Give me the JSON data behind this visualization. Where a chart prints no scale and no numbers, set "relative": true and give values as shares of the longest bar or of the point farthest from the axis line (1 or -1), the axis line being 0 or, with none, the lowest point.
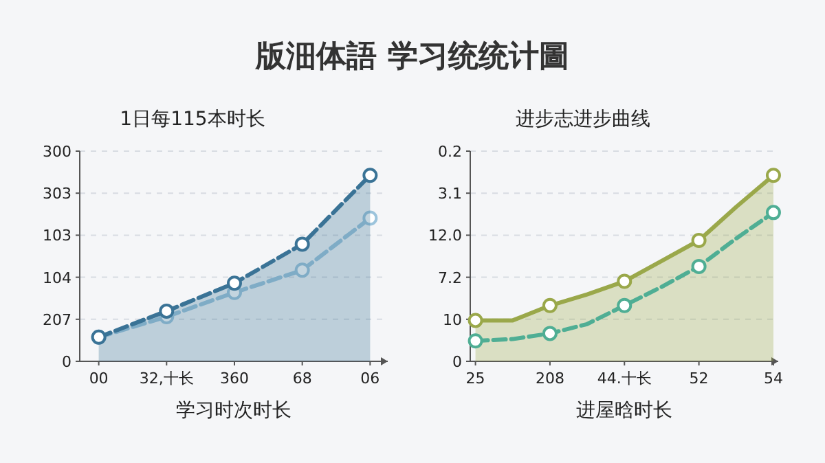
{
  "chart_data": [
    {
      "type": "line",
      "title": "版沺体語 学习统统计圖",
      "subtitle": "1日每115本时长",
      "xlabel": "学习时次时长",
      "categories": [
        "00",
        "32,十长",
        "360",
        "68",
        "06"
      ],
      "relative": true,
      "annotations": [
        "0",
        "207",
        "104",
        "103",
        "303",
        "300"
      ],
      "grid": "y",
      "marker": "circle",
      "line_style": "dashed",
      "series": [
        {
          "type": "line",
          "color": "#9cc4dc",
          "values": [
            0.13,
            0.24,
            0.37,
            0.49,
            0.77
          ]
        },
        {
          "type": "area",
          "color": "#3a7396",
          "values": [
            0.13,
            0.27,
            0.42,
            0.63,
            1
          ]
        }
      ]
    },
    {
      "type": "line",
      "subtitle": "进步志进步曲线",
      "xlabel": "进屋晗时长",
      "categories": [
        "25",
        null,
        "208",
        null,
        "44.十长",
        null,
        "52",
        null,
        "54"
      ],
      "relative": true,
      "annotations": [
        "0",
        "10",
        "7.2",
        "12.0",
        "3.1",
        "0.2"
      ],
      "grid": "y",
      "marker": "circle",
      "series": [
        {
          "type": "area",
          "color": "#9aa84a",
          "line_style": "solid",
          "values": [
            0.22,
            0.22,
            0.3,
            0.36,
            0.43,
            0.54,
            0.65,
            0.83,
            1
          ]
        },
        {
          "type": "line",
          "color": "#4fae94",
          "line_style": "dashed",
          "values": [
            0.11,
            0.12,
            0.15,
            0.2,
            0.3,
            0.4,
            0.51,
            0.66,
            0.8
          ]
        }
      ]
    }
  ]
}
